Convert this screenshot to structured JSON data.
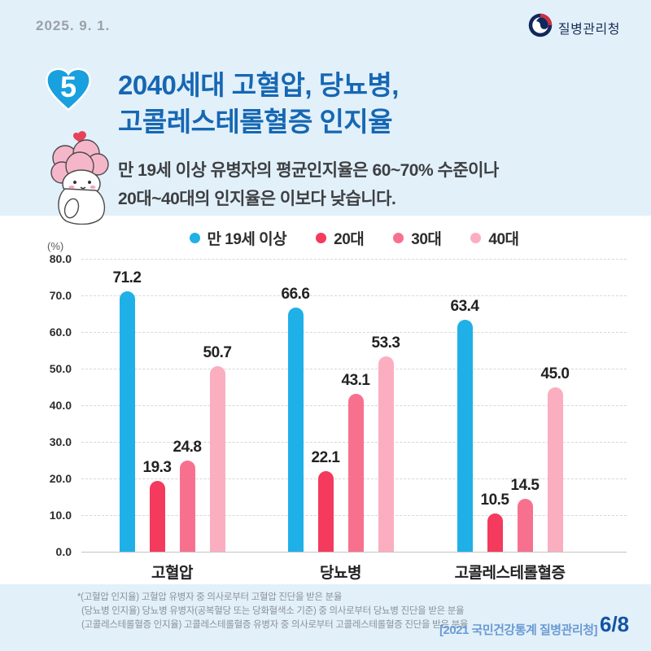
{
  "header": {
    "date": "2025. 9. 1.",
    "logo_text": "질병관리청"
  },
  "title": {
    "badge_number": "5",
    "line1": "2040세대 고혈압, 당뇨병,",
    "line2": "고콜레스테롤혈증 인지율"
  },
  "subtitle": {
    "line1": "만 19세 이상 유병자의 평균인지율은 60~70% 수준이나",
    "line2": "20대~40대의 인지율은 이보다 낮습니다."
  },
  "chart_data": {
    "type": "bar",
    "title": "2040세대 고혈압, 당뇨병, 고콜레스테롤혈증 인지율",
    "unit_label": "(%)",
    "categories": [
      "고혈압",
      "당뇨병",
      "고콜레스테롤혈증"
    ],
    "series": [
      {
        "name": "만 19세 이상",
        "color": "#1fb0e8",
        "values": [
          71.2,
          66.6,
          63.4
        ]
      },
      {
        "name": "20대",
        "color": "#f43a5d",
        "values": [
          19.3,
          22.1,
          10.5
        ]
      },
      {
        "name": "30대",
        "color": "#f7718f",
        "values": [
          24.8,
          43.1,
          14.5
        ]
      },
      {
        "name": "40대",
        "color": "#fbaec0",
        "values": [
          50.7,
          53.3,
          45.0
        ]
      }
    ],
    "ylim": [
      0,
      80
    ],
    "ytick_step": 10,
    "grid": "horizontal-dashed",
    "legend_position": "top-center"
  },
  "footnotes": [
    "*(고혈압 인지율) 고혈압 유병자 중 의사로부터 고혈압 진단을 받은 분율",
    "(당뇨병 인지율) 당뇨병 유병자(공복혈당 또는 당화혈색소 기준) 중 의사로부터 당뇨병 진단을 받은 분율",
    "(고콜레스테롤혈증 인지율) 고콜레스테롤혈증 유병자 중 의사로부터 고콜레스테롤혈증 진단을 받은 분율"
  ],
  "footer": {
    "source": "[2021 국민건강통계 질병관리청]",
    "page": "6/8"
  }
}
